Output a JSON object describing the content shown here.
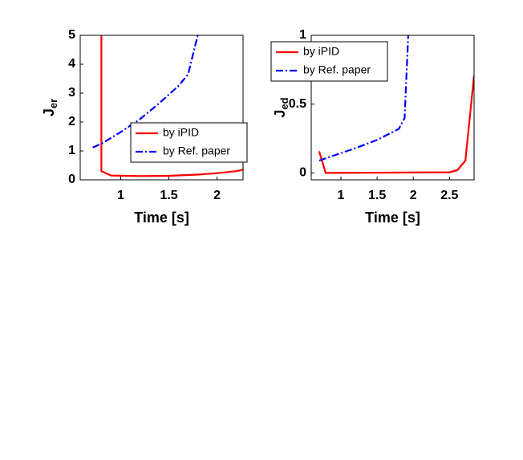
{
  "chart_data": [
    {
      "type": "line",
      "xlabel": "Time [s]",
      "ylabel": "J",
      "ylabel_subscript": "er",
      "xlim": [
        0.58,
        2.27
      ],
      "ylim": [
        0,
        5
      ],
      "xticks": [
        1,
        1.5,
        2
      ],
      "yticks": [
        0,
        1,
        2,
        3,
        4,
        5
      ],
      "legend": "lower right",
      "series": [
        {
          "name": "by iPID",
          "color": "#ff0000",
          "style": "solid",
          "x": [
            0.8,
            0.8,
            0.9,
            1.2,
            1.5,
            1.8,
            2.0,
            2.2,
            2.27
          ],
          "values": [
            5,
            0.3,
            0.15,
            0.13,
            0.14,
            0.18,
            0.23,
            0.3,
            0.35
          ]
        },
        {
          "name": "by Ref. paper",
          "color": "#0000ff",
          "style": "dashdot",
          "x": [
            0.71,
            0.8,
            1.0,
            1.2,
            1.4,
            1.6,
            1.7,
            1.8
          ],
          "values": [
            1.12,
            1.25,
            1.65,
            2.1,
            2.65,
            3.25,
            3.65,
            5
          ]
        }
      ]
    },
    {
      "type": "line",
      "xlabel": "Time [s]",
      "ylabel": "J",
      "ylabel_subscript": "ed",
      "xlim": [
        0.59,
        2.84
      ],
      "ylim": [
        -0.05,
        1
      ],
      "xticks": [
        1,
        1.5,
        2,
        2.5
      ],
      "yticks": [
        0,
        0.5,
        1
      ],
      "legend": "upper left",
      "series": [
        {
          "name": "by iPID",
          "color": "#ff0000",
          "style": "solid",
          "x": [
            0.7,
            0.79,
            1.5,
            2.5,
            2.61,
            2.72,
            2.84
          ],
          "values": [
            0.157,
            0.0,
            0.002,
            0.005,
            0.02,
            0.09,
            0.71
          ]
        },
        {
          "name": "by Ref. paper",
          "color": "#0000ff",
          "style": "dashdot",
          "x": [
            0.7,
            1.2,
            1.5,
            1.8,
            1.88,
            1.93
          ],
          "values": [
            0.09,
            0.18,
            0.24,
            0.32,
            0.4,
            1.0
          ]
        }
      ]
    }
  ]
}
